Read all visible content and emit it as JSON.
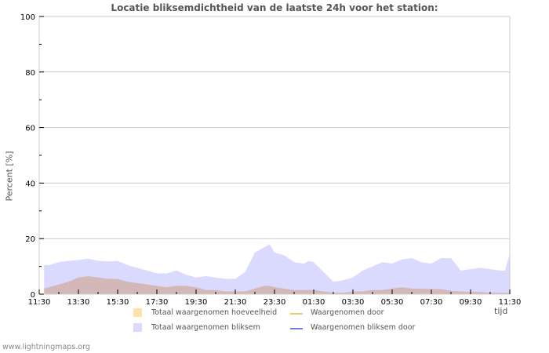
{
  "title": "Locatie bliksemdichtheid van de laatste 24h voor het station:",
  "footer": "www.lightningmaps.org",
  "colors": {
    "hoeveelheid_fill": "#d4b8b8",
    "hoeveelheid_legend": "#fde3aa",
    "bliksem_fill": "#dadaff",
    "door_line": "#f5c860",
    "bliksem_door_line": "#7b7be0",
    "grid": "#cccccc",
    "axis_text": "#000000",
    "title_text": "#555555"
  },
  "axes": {
    "ylabel": "Percent   [%]",
    "xunit": "tijd",
    "yticks": [
      "0",
      "20",
      "40",
      "60",
      "80",
      "100"
    ],
    "xticks": [
      "11:30",
      "13:30",
      "15:30",
      "17:30",
      "19:30",
      "21:30",
      "23:30",
      "01:30",
      "03:30",
      "05:30",
      "07:30",
      "09:30",
      "11:30"
    ]
  },
  "legend": [
    {
      "label": "Totaal waargenomen hoeveelheid",
      "type": "area"
    },
    {
      "label": "Waargenomen door",
      "type": "line"
    },
    {
      "label": "Totaal waargenomen bliksem",
      "type": "area"
    },
    {
      "label": "Waargenomen bliksem door",
      "type": "line"
    }
  ],
  "chart_data": {
    "type": "area",
    "title": "Locatie bliksemdichtheid van de laatste 24h voor het station:",
    "xlabel": "tijd",
    "ylabel": "Percent [%]",
    "ylim": [
      0,
      100
    ],
    "grid": true,
    "legend_position": "bottom",
    "x_hours_from_start": [
      0.25,
      0.5,
      1,
      1.5,
      2,
      2.5,
      3,
      3.5,
      4,
      4.5,
      5,
      5.5,
      6,
      6.5,
      7,
      7.5,
      8,
      8.5,
      9,
      9.5,
      10,
      10.5,
      11,
      11.5,
      11.75,
      12,
      12.5,
      13,
      13.5,
      13.75,
      14,
      14.5,
      15,
      15.5,
      16,
      16.5,
      17,
      17.5,
      18,
      18.5,
      19,
      19.5,
      20,
      20.5,
      21,
      21.5,
      22,
      22.5,
      23,
      23.5,
      23.75,
      24
    ],
    "x_start_label": "11:30",
    "x_end_label": "11:30",
    "series": [
      {
        "name": "Totaal waargenomen bliksem",
        "values": [
          10.5,
          10.5,
          11.5,
          12,
          12.3,
          12.8,
          12,
          11.8,
          12,
          10.5,
          9.5,
          8.5,
          7.5,
          7.5,
          8.5,
          7,
          6,
          6.5,
          6,
          5.5,
          5.5,
          8,
          15,
          17,
          18,
          15,
          14,
          11.5,
          11,
          12,
          11.5,
          8,
          4.5,
          5,
          6,
          8.5,
          10,
          11.5,
          11,
          12.5,
          13,
          11.5,
          11,
          13,
          13,
          8.5,
          9,
          9.5,
          9,
          8.5,
          8.5,
          14.5
        ]
      },
      {
        "name": "Totaal waargenomen hoeveelheid",
        "values": [
          2,
          2.5,
          3.5,
          4.5,
          6,
          6.5,
          6,
          5.5,
          5.5,
          4.5,
          4,
          3.5,
          3,
          2.5,
          3,
          3,
          2.5,
          1.5,
          1.5,
          1,
          1,
          1,
          2,
          3,
          3,
          2.5,
          2,
          1.5,
          1.5,
          1.5,
          1.5,
          1,
          0.5,
          0.5,
          1,
          1,
          1.5,
          1.5,
          2,
          2.5,
          2,
          2,
          1.8,
          1.8,
          1.2,
          1,
          0.8,
          0.8,
          0.5,
          0.5,
          0.5,
          0.5
        ]
      },
      {
        "name": "Waargenomen door",
        "values": []
      },
      {
        "name": "Waargenomen bliksem door",
        "values": []
      }
    ]
  }
}
